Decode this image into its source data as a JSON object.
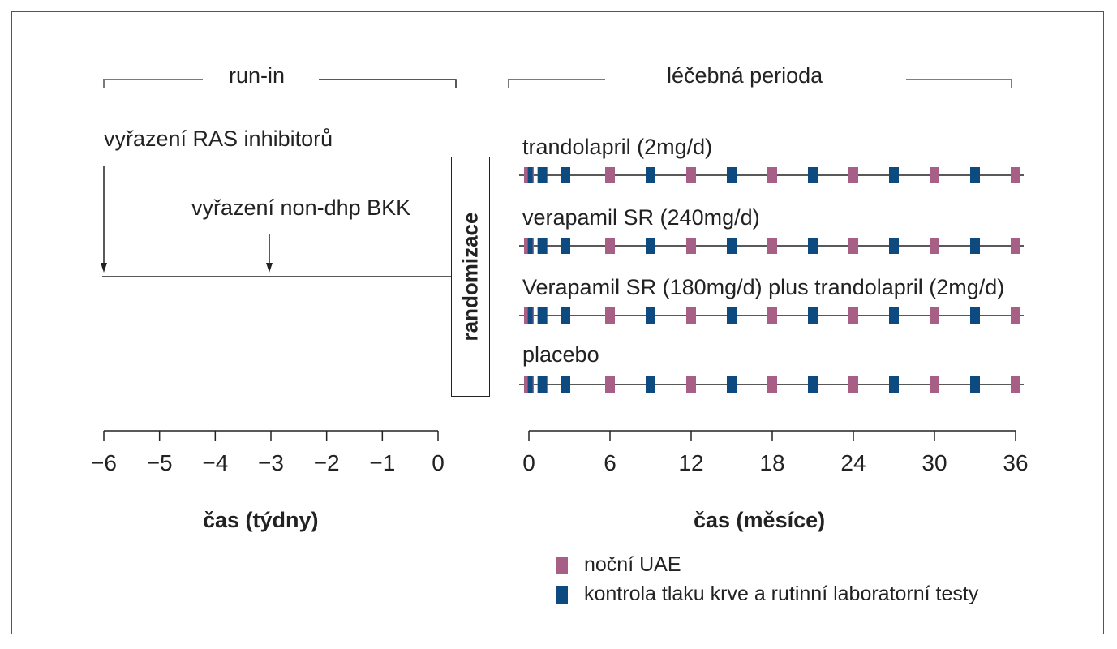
{
  "colors": {
    "uae": "#a85f86",
    "control": "#0d4a80",
    "line": "#222222",
    "bracket": "#7a7a7a"
  },
  "phases": {
    "run_in": "run-in",
    "treatment": "léčebná perioda"
  },
  "events": {
    "ras": "vyřazení RAS inhibitorů",
    "bkk": "vyřazení non-dhp BKK",
    "randomization": "randomizace",
    "ras_week": -6,
    "bkk_week": -3
  },
  "arms": [
    {
      "label": "trandolapril (2mg/d)"
    },
    {
      "label": "verapamil SR (240mg/d)"
    },
    {
      "label": "Verapamil SR (180mg/d) plus trandolapril (2mg/d)"
    },
    {
      "label": "placebo"
    }
  ],
  "schedule": {
    "uae_months": [
      0,
      6,
      12,
      18,
      24,
      30,
      36
    ],
    "control_months": [
      0.1,
      1,
      2.7,
      9,
      15,
      21,
      27,
      33
    ]
  },
  "axes": {
    "weeks": {
      "ticks": [
        "−6",
        "−5",
        "−4",
        "−3",
        "−2",
        "−1",
        "0"
      ],
      "values": [
        -6,
        -5,
        -4,
        -3,
        -2,
        -1,
        0
      ],
      "label": "čas (týdny)"
    },
    "months": {
      "ticks": [
        "0",
        "6",
        "12",
        "18",
        "24",
        "30",
        "36"
      ],
      "values": [
        0,
        6,
        12,
        18,
        24,
        30,
        36
      ],
      "label": "čas (měsíce)"
    }
  },
  "legend": {
    "uae": "noční UAE",
    "control": "kontrola tlaku krve a rutinní laboratorní testy"
  }
}
